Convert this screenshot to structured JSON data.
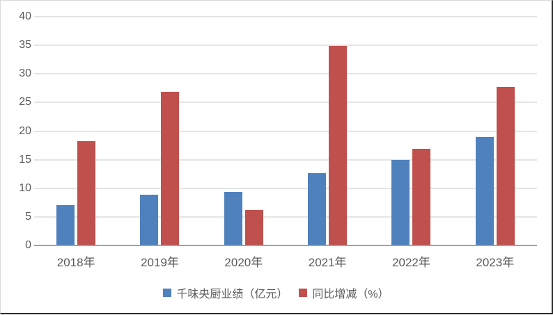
{
  "chart_data": {
    "type": "bar",
    "title": "",
    "categories": [
      "2018年",
      "2019年",
      "2020年",
      "2021年",
      "2022年",
      "2023年"
    ],
    "series": [
      {
        "name": "千味央厨业绩（亿元）",
        "color": "#4F81BD",
        "values": [
          7.0,
          8.9,
          9.4,
          12.7,
          14.9,
          19.0
        ]
      },
      {
        "name": "同比增减（%）",
        "color": "#C0504D",
        "values": [
          18.2,
          26.9,
          6.2,
          34.9,
          16.9,
          27.7
        ]
      }
    ],
    "xlabel": "",
    "ylabel": "",
    "ylim": [
      0,
      40
    ],
    "yticks": [
      0,
      5,
      10,
      15,
      20,
      25,
      30,
      35,
      40
    ],
    "grid": "horizontal",
    "legend_position": "bottom"
  },
  "styles": {
    "plot_background": "#FFFFFF",
    "gridline_color": "#E4E4E4",
    "axis_line_color": "#A0A0A0",
    "tick_label_color": "#595959",
    "category_label_color": "#595959",
    "legend_text_color": "#595959"
  }
}
